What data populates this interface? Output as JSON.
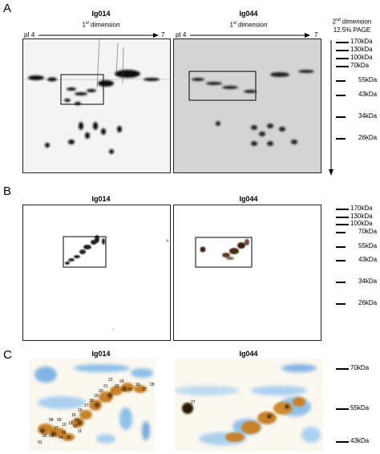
{
  "panels": {
    "A": {
      "letter": "A",
      "left_title": "Ig014",
      "right_title": "Ig044",
      "left_dimension": "1",
      "right_dimension": "1",
      "dim_sup": "st",
      "dim_word": " dimension",
      "ph_start": "pI 4",
      "ph_end": "7",
      "page_label_line1_num": "2",
      "page_label_line1_sup": "nd",
      "page_label_line1_rest": " dimension",
      "page_label_line2": "12.5% PAGE",
      "markers": [
        "170kDa",
        "130kDa",
        "100kDa",
        "70kDa",
        "55kDa",
        "43kDa",
        "34kDa",
        "26kDa"
      ]
    },
    "B": {
      "letter": "B",
      "left_title": "Ig014",
      "right_title": "Ig044",
      "markers": [
        "170kDa",
        "130kDa",
        "100kDa",
        "70kDa",
        "55kDa",
        "43kDa",
        "34kDa",
        "26kDa"
      ]
    },
    "C": {
      "letter": "C",
      "left_title": "Ig014",
      "right_title": "Ig044",
      "markers": [
        "70kDa",
        "55kDa",
        "43kDa"
      ],
      "spot_labels_left": [
        "28",
        "27",
        "26",
        "25",
        "24",
        "23",
        "22",
        "21",
        "20",
        "19",
        "18",
        "17",
        "16",
        "15",
        "14",
        "13",
        "12",
        "11",
        "10",
        "09",
        "08",
        "07",
        "06",
        "05",
        "04",
        "03",
        "02",
        "01"
      ],
      "spot_labels_right": [
        "27"
      ]
    }
  }
}
